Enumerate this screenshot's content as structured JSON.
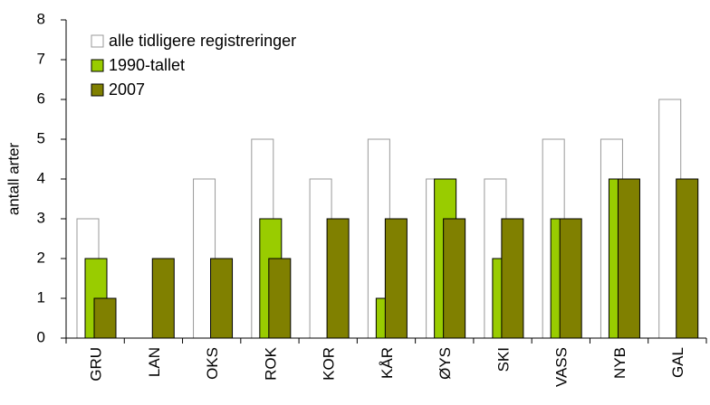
{
  "chart_data": {
    "type": "bar",
    "y_label": "antall arter",
    "categories": [
      "GRU",
      "LAN",
      "OKS",
      "ROK",
      "KOR",
      "KÅR",
      "ØYS",
      "SKI",
      "VASS",
      "NYB",
      "GAL"
    ],
    "series": [
      {
        "name": "alle tidligere registreringer",
        "color": "#ffffff",
        "values": [
          3,
          0,
          4,
          5,
          4,
          5,
          4,
          4,
          5,
          5,
          6
        ]
      },
      {
        "name": "1990-tallet",
        "color": "#99cc00",
        "values": [
          2,
          0,
          0,
          3,
          0,
          1,
          4,
          2,
          3,
          4,
          0
        ]
      },
      {
        "name": "2007",
        "color": "#808000",
        "values": [
          1,
          2,
          2,
          2,
          3,
          3,
          3,
          3,
          3,
          4,
          4
        ]
      }
    ],
    "ylim": [
      0,
      8
    ],
    "yticks": [
      0,
      1,
      2,
      3,
      4,
      5,
      6,
      7,
      8
    ],
    "legend": "upper left"
  }
}
